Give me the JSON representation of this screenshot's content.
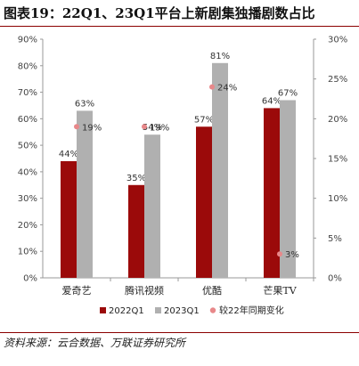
{
  "chart_data": {
    "type": "bar",
    "title": "图表19：22Q1、23Q1平台上新剧集独播剧数占比",
    "categories": [
      "爱奇艺",
      "腾讯视频",
      "优酷",
      "芒果TV"
    ],
    "series": [
      {
        "name": "2022Q1",
        "values": [
          44,
          35,
          57,
          64
        ],
        "labels": [
          "44%",
          "35%",
          "57%",
          "64%"
        ],
        "color": "#9b0a0a",
        "axis": "left"
      },
      {
        "name": "2023Q1",
        "values": [
          63,
          54,
          81,
          67
        ],
        "labels": [
          "63%",
          "54%",
          "81%",
          "67%"
        ],
        "color": "#b0b0b0",
        "axis": "left"
      },
      {
        "name": "较22年同期变化",
        "values": [
          19,
          19,
          24,
          3
        ],
        "labels": [
          "19%",
          "19%",
          "24%",
          "3%"
        ],
        "color": "#e8888a",
        "axis": "right",
        "marker": "point"
      }
    ],
    "y_left": {
      "min": 0,
      "max": 90,
      "step": 10,
      "ticks": [
        "0%",
        "10%",
        "20%",
        "30%",
        "40%",
        "50%",
        "60%",
        "70%",
        "80%",
        "90%"
      ]
    },
    "y_right": {
      "min": 0,
      "max": 30,
      "step": 5,
      "ticks": [
        "0%",
        "5%",
        "10%",
        "15%",
        "20%",
        "25%",
        "30%"
      ]
    },
    "grid": false,
    "legend": "bottom"
  },
  "source": "资料来源：云合数据、万联证券研究所"
}
